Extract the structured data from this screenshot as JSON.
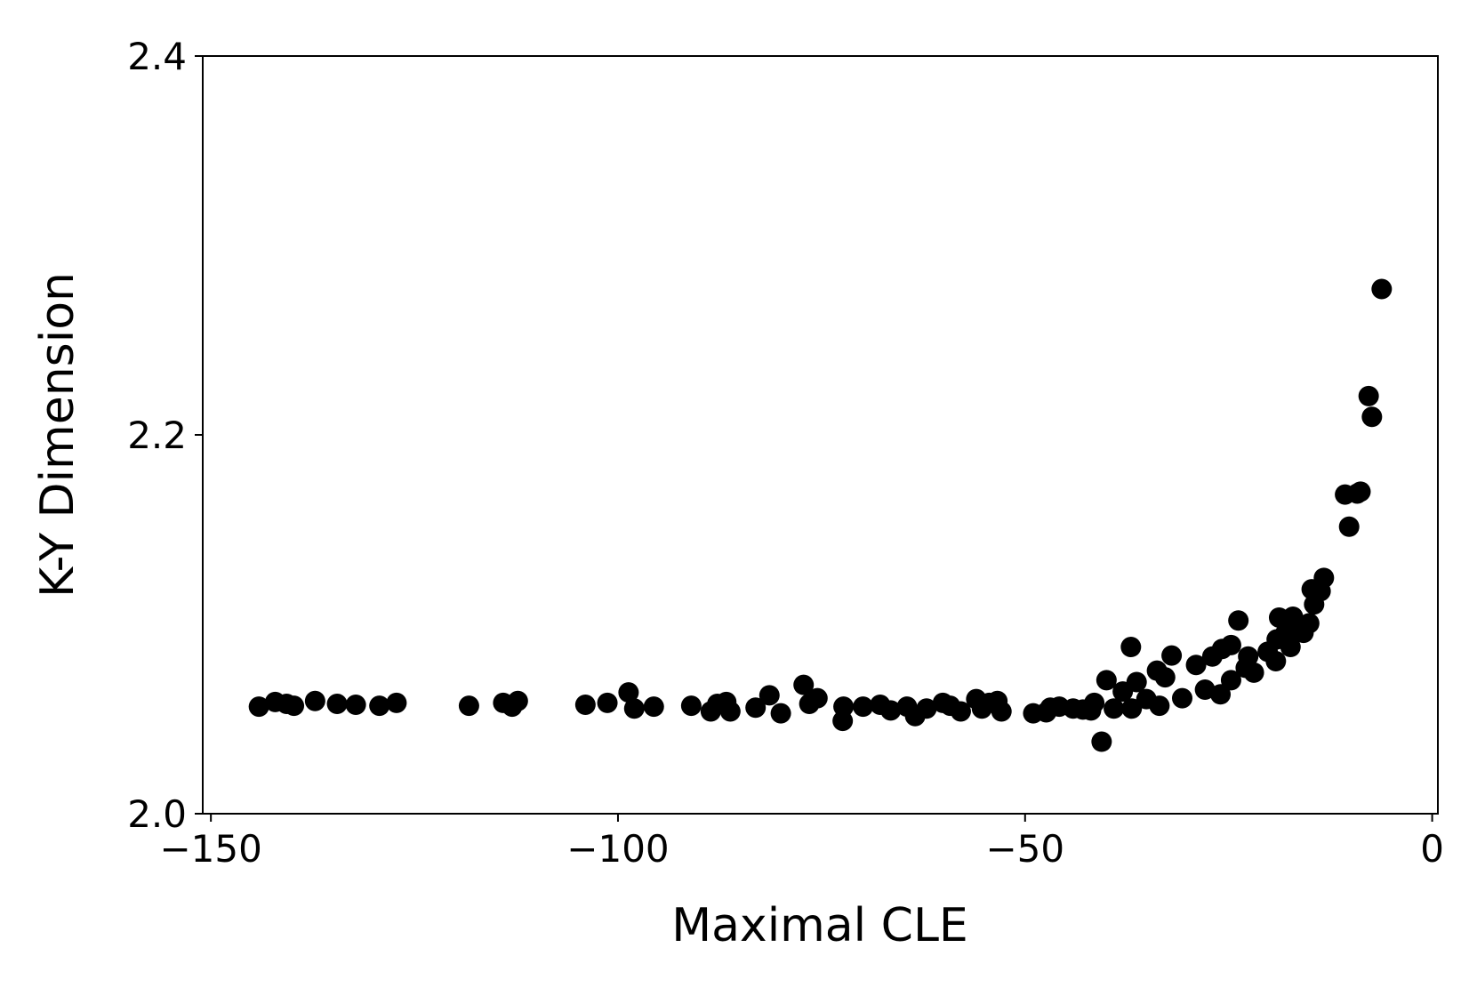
{
  "chart_data": {
    "type": "scatter",
    "x_label": "Maximal CLE",
    "y_label": "K-Y Dimension",
    "color": "#000000",
    "x": [
      -144.1,
      -142.1,
      -140.7,
      -139.8,
      -137.2,
      -134.5,
      -132.2,
      -129.3,
      -127.2,
      -118.3,
      -114.1,
      -113.0,
      -112.3,
      -104.0,
      -101.3,
      -98.7,
      -98.0,
      -95.6,
      -91.0,
      -88.6,
      -87.8,
      -86.7,
      -86.2,
      -83.1,
      -81.4,
      -80.0,
      -77.2,
      -76.5,
      -75.5,
      -72.4,
      -72.3,
      -69.9,
      -67.8,
      -66.5,
      -64.5,
      -63.5,
      -62.1,
      -60.1,
      -59.2,
      -57.9,
      -56.0,
      -55.3,
      -54.4,
      -53.4,
      -52.9,
      -49.0,
      -47.4,
      -46.9,
      -45.8,
      -44.1,
      -42.9,
      -41.5,
      -41.9,
      -40.6,
      -40.0,
      -39.1,
      -38.0,
      -37.0,
      -36.9,
      -36.3,
      -35.1,
      -33.8,
      -33.5,
      -32.8,
      -32.0,
      -30.7,
      -29.0,
      -27.9,
      -27.0,
      -26.0,
      -25.8,
      -24.7,
      -24.7,
      -23.8,
      -22.9,
      -22.6,
      -21.9,
      -20.2,
      -19.2,
      -19.1,
      -18.8,
      -18.0,
      -17.4,
      -17.1,
      -16.5,
      -15.8,
      -15.1,
      -14.5,
      -14.8,
      -13.7,
      -13.3,
      -10.7,
      -10.2,
      -9.2,
      -8.8,
      -7.8,
      -7.4,
      -6.2
    ],
    "values": [
      2.0565,
      2.059,
      2.058,
      2.057,
      2.0595,
      2.058,
      2.0575,
      2.057,
      2.0585,
      2.057,
      2.0585,
      2.0565,
      2.0595,
      2.0575,
      2.0585,
      2.064,
      2.0555,
      2.0565,
      2.057,
      2.054,
      2.058,
      2.059,
      2.054,
      2.056,
      2.0625,
      2.053,
      2.068,
      2.058,
      2.061,
      2.049,
      2.0565,
      2.0565,
      2.0575,
      2.0545,
      2.0565,
      2.0515,
      2.0555,
      2.0585,
      2.057,
      2.054,
      2.0605,
      2.0555,
      2.0585,
      2.0595,
      2.054,
      2.053,
      2.0535,
      2.056,
      2.0565,
      2.0555,
      2.055,
      2.0585,
      2.0545,
      2.038,
      2.0705,
      2.0555,
      2.0645,
      2.088,
      2.0555,
      2.0695,
      2.0605,
      2.0755,
      2.057,
      2.072,
      2.0835,
      2.061,
      2.0785,
      2.0655,
      2.083,
      2.063,
      2.087,
      2.089,
      2.0705,
      2.102,
      2.077,
      2.083,
      2.0745,
      2.0855,
      2.0805,
      2.092,
      2.1035,
      2.0955,
      2.088,
      2.104,
      2.098,
      2.0955,
      2.1005,
      2.1105,
      2.1185,
      2.1175,
      2.1245,
      2.1685,
      2.1515,
      2.169,
      2.17,
      2.2205,
      2.2095,
      2.277
    ],
    "xlim": [
      -151,
      0.7
    ],
    "xticks": [
      {
        "value": -150,
        "label": "−150"
      },
      {
        "value": -100,
        "label": "−100"
      },
      {
        "value": -50,
        "label": "−50"
      },
      0
    ],
    "ylim": [
      2.0,
      2.4
    ],
    "yticks": [
      {
        "value": 2.0,
        "label": "2.0"
      },
      2.2,
      2.4
    ]
  }
}
